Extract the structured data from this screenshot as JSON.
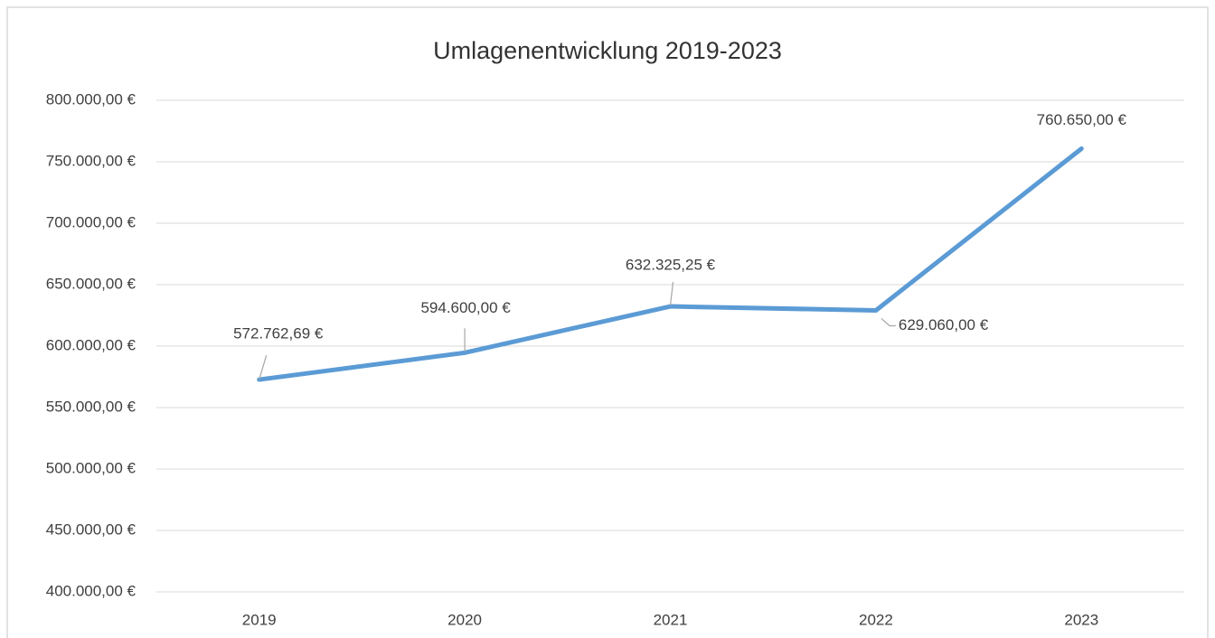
{
  "chart_data": {
    "type": "line",
    "title": "Umlagenentwicklung 2019-2023",
    "categories": [
      "2019",
      "2020",
      "2021",
      "2022",
      "2023"
    ],
    "series": [
      {
        "name": "Umlagen",
        "color": "#5b9bd5",
        "values": [
          572762.69,
          594600,
          632325.25,
          629060,
          760650
        ],
        "value_labels": [
          "572.762,69 €",
          "594.600,00 €",
          "632.325,25 €",
          "629.060,00 €",
          "760.650,00 €"
        ]
      }
    ],
    "ylim": [
      400000,
      800000
    ],
    "yticks": [
      {
        "value": 400000,
        "label": "400.000,00 €"
      },
      {
        "value": 450000,
        "label": "450.000,00 €"
      },
      {
        "value": 500000,
        "label": "500.000,00 €"
      },
      {
        "value": 550000,
        "label": "550.000,00 €"
      },
      {
        "value": 600000,
        "label": "600.000,00 €"
      },
      {
        "value": 650000,
        "label": "650.000,00 €"
      },
      {
        "value": 700000,
        "label": "700.000,00 €"
      },
      {
        "value": 750000,
        "label": "750.000,00 €"
      },
      {
        "value": 800000,
        "label": "800.000,00 €"
      }
    ],
    "grid": true
  }
}
